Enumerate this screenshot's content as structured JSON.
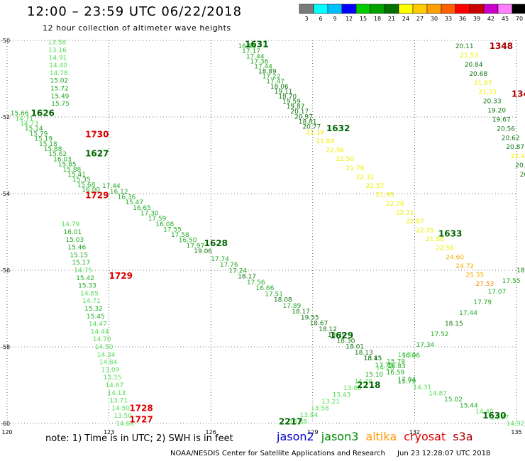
{
  "header": {
    "title": "12:00 – 23:59 UTC 06/22/2018",
    "subtitle": "12 hour collection of altimeter wave heights"
  },
  "legend": {
    "unit": "(ft)",
    "bins": [
      {
        "label": "3",
        "color": "#7a7a7a"
      },
      {
        "label": "6",
        "color": "#00ffff"
      },
      {
        "label": "9",
        "color": "#00bfff"
      },
      {
        "label": "12",
        "color": "#0000ff"
      },
      {
        "label": "15",
        "color": "#00cc00"
      },
      {
        "label": "18",
        "color": "#00a000"
      },
      {
        "label": "21",
        "color": "#007000"
      },
      {
        "label": "24",
        "color": "#ffff00"
      },
      {
        "label": "27",
        "color": "#ffcc00"
      },
      {
        "label": "30",
        "color": "#ffa000"
      },
      {
        "label": "33",
        "color": "#ff6000"
      },
      {
        "label": "36",
        "color": "#ff0000"
      },
      {
        "label": "39",
        "color": "#cc0000"
      },
      {
        "label": "42",
        "color": "#cc00cc"
      },
      {
        "label": "45",
        "color": "#ff80ff"
      },
      {
        "label": "70",
        "color": "#000000"
      }
    ]
  },
  "note": "note:  1) Time is in UTC;  2) SWH is in feet",
  "satellites": [
    {
      "name": "jason2",
      "color": "#0000cc"
    },
    {
      "name": "jason3",
      "color": "#008800"
    },
    {
      "name": "altika",
      "color": "#ff9900"
    },
    {
      "name": "cryosat",
      "color": "#dd0000"
    },
    {
      "name": "s3a",
      "color": "#aa0000"
    }
  ],
  "footer": {
    "credit": "NOAA/NESDIS Center for Satellite Applications and Research",
    "timestamp": "Jun 23 12:28:07 UTC 2018"
  },
  "chart_data": {
    "type": "scatter",
    "title": "12:00 – 23:59 UTC 06/22/2018",
    "xlim": [
      120,
      135
    ],
    "ylim": [
      -60,
      -50
    ],
    "x_ticks": [
      {
        "value": 120,
        "label": "120"
      },
      {
        "value": 123,
        "label": "123"
      },
      {
        "value": 126,
        "label": "126"
      },
      {
        "value": 129,
        "label": "129"
      },
      {
        "value": 132,
        "label": "132"
      },
      {
        "value": 135,
        "label": "135"
      }
    ],
    "y_ticks": [
      {
        "value": -50,
        "label": "-50"
      },
      {
        "value": -52,
        "label": "-52"
      },
      {
        "value": -54,
        "label": "-54"
      },
      {
        "value": -56,
        "label": "-56"
      },
      {
        "value": -58,
        "label": "-58"
      },
      {
        "value": -60,
        "label": "-60"
      }
    ],
    "grid": "dotted",
    "series": [
      {
        "satellite": "jason3",
        "start": [
          121.2,
          -50.05
        ],
        "end": [
          121.3,
          -51.65
        ],
        "values": [
          "13.58",
          "13.16",
          "14.91",
          "14.40",
          "14.78",
          "15.02",
          "15.72",
          "15.49",
          "15.75"
        ]
      },
      {
        "satellite": "jason3",
        "start": [
          120.1,
          -51.9
        ],
        "end": [
          122.2,
          -53.9
        ],
        "values": [
          "15.66",
          "14.71",
          "14.73",
          "15.14",
          "15.79",
          "15.19",
          "15.18",
          "15.88",
          "15.62",
          "16.03",
          "15.85",
          "15.88",
          "15.41",
          "15.35",
          "15.68",
          "16.00"
        ]
      },
      {
        "satellite": "jason3",
        "start": [
          121.6,
          -54.8
        ],
        "end": [
          123.2,
          -60.0
        ],
        "values": [
          "14.79",
          "16.01",
          "15.03",
          "15.46",
          "15.15",
          "15.17",
          "14.75",
          "15.42",
          "15.33",
          "14.85",
          "14.71",
          "15.32",
          "15.45",
          "14.47",
          "14.44",
          "14.70",
          "14.50",
          "14.34",
          "14.84",
          "13.09",
          "13.35",
          "14.67",
          "14.13",
          "13.71",
          "14.50",
          "13.50",
          "14.66"
        ]
      },
      {
        "satellite": "jason3",
        "start": [
          122.8,
          -53.8
        ],
        "end": [
          125.5,
          -55.5
        ],
        "values": [
          "17.44",
          "16.12",
          "16.36",
          "15.47",
          "16.65",
          "17.30",
          "17.59",
          "16.08",
          "17.55",
          "17.58",
          "16.50",
          "17.97",
          "19.06"
        ]
      },
      {
        "satellite": "jason3",
        "start": [
          126.0,
          -55.7
        ],
        "end": [
          130.5,
          -58.3
        ],
        "values": [
          "17.74",
          "17.76",
          "17.24",
          "18.17",
          "17.56",
          "16.66",
          "17.51",
          "18.08",
          "17.89",
          "18.17",
          "19.55",
          "18.67",
          "18.12",
          "18.79",
          "18.30",
          "18.01",
          "18.13",
          "18.45"
        ]
      },
      {
        "satellite": "jason3",
        "start": [
          130.5,
          -58.3
        ],
        "end": [
          131.5,
          -58.85
        ],
        "values": [
          "18.15",
          "17.75",
          "16.59",
          "17.04"
        ]
      },
      {
        "satellite": "jason3",
        "start": [
          126.8,
          -50.15
        ],
        "end": [
          128.7,
          -52.25
        ],
        "values": [
          "16.55",
          "17.17",
          "17.44",
          "17.36",
          "17.44",
          "18.89",
          "17.22",
          "17.47",
          "18.06",
          "19.11",
          "18.70",
          "19.59",
          "19.87",
          "20.17",
          "20.97",
          "18.81",
          "20.77"
        ]
      },
      {
        "satellite": "altika",
        "start": [
          128.8,
          -52.4
        ],
        "end": [
          133.8,
          -56.35
        ],
        "values": [
          "21.19",
          "21.84",
          "22.56",
          "22.50",
          "21.76",
          "22.32",
          "22.57",
          "21.95",
          "22.78",
          "22.11",
          "22.87",
          "22.35",
          "21.88",
          "22.56",
          "24.60",
          "24.72",
          "25.35",
          "27.53"
        ]
      },
      {
        "satellite": "jason3",
        "start": [
          133.2,
          -50.15
        ],
        "end": [
          135.1,
          -53.5
        ],
        "values": [
          "20.11",
          "21.53",
          "20.84",
          "20.68",
          "21.87",
          "21.33",
          "20.33",
          "19.20",
          "19.67",
          "20.56",
          "20.62",
          "20.87",
          "22.47",
          "20.5",
          "20."
        ]
      },
      {
        "satellite": "jason3",
        "start": [
          128.3,
          -59.95
        ],
        "end": [
          131.5,
          -58.2
        ],
        "values": [
          "13.88",
          "13.84",
          "13.58",
          "13.21",
          "13.43",
          "13.88",
          "14.20",
          "15.10",
          "14.28",
          "15.79",
          "14.51"
        ]
      },
      {
        "satellite": "jason3",
        "start": [
          131.2,
          -58.5
        ],
        "end": [
          135.0,
          -56.0
        ],
        "values": [
          "16.83",
          "16.06",
          "17.34",
          "17.52",
          "18.15",
          "17.44",
          "17.79",
          "17.07",
          "17.55",
          "18.98"
        ]
      },
      {
        "satellite": "jason3",
        "start": [
          131.5,
          -58.9
        ],
        "end": [
          134.7,
          -60.0
        ],
        "values": [
          "15.79",
          "14.31",
          "14.87",
          "15.02",
          "15.44",
          "14.40",
          "14.87",
          "14.92"
        ]
      }
    ],
    "pass_labels": [
      {
        "text": "1626",
        "x": 120.7,
        "y": -51.9,
        "satellite": "jason3"
      },
      {
        "text": "1627",
        "x": 122.3,
        "y": -52.95,
        "satellite": "jason3"
      },
      {
        "text": "1628",
        "x": 125.8,
        "y": -55.3,
        "satellite": "jason3"
      },
      {
        "text": "1629",
        "x": 129.5,
        "y": -57.7,
        "satellite": "jason3"
      },
      {
        "text": "1631",
        "x": 127.0,
        "y": -50.1,
        "satellite": "jason3"
      },
      {
        "text": "1632",
        "x": 129.4,
        "y": -52.3,
        "satellite": "jason3"
      },
      {
        "text": "1633",
        "x": 132.7,
        "y": -55.05,
        "satellite": "jason3"
      },
      {
        "text": "1630",
        "x": 134.0,
        "y": -59.8,
        "satellite": "jason3"
      },
      {
        "text": "2218",
        "x": 130.3,
        "y": -59.0,
        "satellite": "jason3"
      },
      {
        "text": "2217",
        "x": 128.0,
        "y": -59.95,
        "satellite": "jason3"
      },
      {
        "text": "1730",
        "x": 122.3,
        "y": -52.45,
        "satellite": "cryosat"
      },
      {
        "text": "1729",
        "x": 122.3,
        "y": -54.05,
        "satellite": "cryosat"
      },
      {
        "text": "1729",
        "x": 123.0,
        "y": -56.15,
        "satellite": "cryosat"
      },
      {
        "text": "1728",
        "x": 123.6,
        "y": -59.6,
        "satellite": "cryosat"
      },
      {
        "text": "1727",
        "x": 123.6,
        "y": -59.9,
        "satellite": "cryosat"
      },
      {
        "text": "1348",
        "x": 134.2,
        "y": -50.15,
        "satellite": "s3a"
      },
      {
        "text": "134",
        "x": 134.85,
        "y": -51.4,
        "satellite": "s3a"
      }
    ]
  }
}
